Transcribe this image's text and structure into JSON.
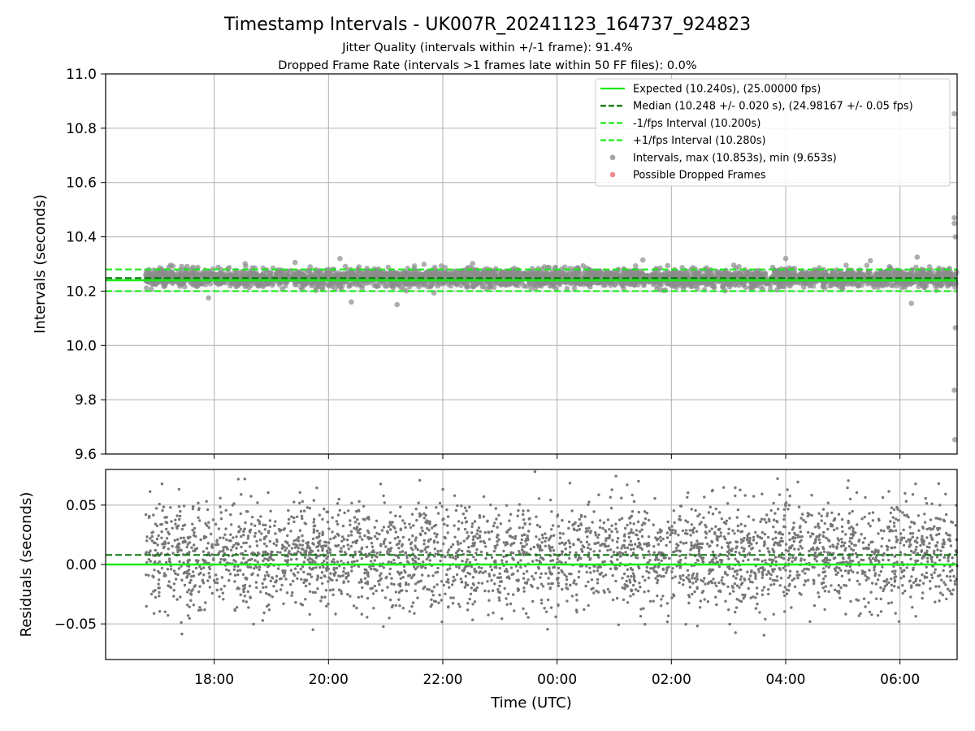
{
  "chart_data": {
    "type": "scatter",
    "title": "Timestamp Intervals - UK007R_20241123_164737_924823",
    "subtitle_lines": [
      "Jitter Quality (intervals within +/-1 frame): 91.4%",
      "Dropped Frame Rate (intervals >1 frames late within 50 FF files): 0.0%"
    ],
    "xlabel": "Time (UTC)",
    "x_ticks": [
      "18:00",
      "20:00",
      "22:00",
      "00:00",
      "02:00",
      "04:00",
      "06:00"
    ],
    "x_tick_hours": [
      18,
      20,
      22,
      24,
      26,
      28,
      30
    ],
    "xlim_hours": [
      16.1,
      31.0
    ],
    "data_start_hour": 16.8,
    "data_end_hour": 31.0,
    "grid": true,
    "legend_position": "top-right",
    "colors": {
      "expected": "#1aeb1a",
      "median": "#0a7a0a",
      "interval_bounds": "#1aeb1a",
      "intervals": "#8c8c8c",
      "dropped": "#f07070",
      "residuals": "#777777"
    },
    "main_panel": {
      "ylabel": "Intervals (seconds)",
      "ylim": [
        9.6,
        11.0
      ],
      "y_ticks": [
        9.6,
        9.8,
        10.0,
        10.2,
        10.4,
        10.6,
        10.8,
        11.0
      ],
      "y_tick_labels": [
        "9.6",
        "9.8",
        "10.0",
        "10.2",
        "10.4",
        "10.6",
        "10.8",
        "11.0"
      ],
      "expected_interval": 10.24,
      "median_interval": 10.248,
      "minus_interval": 10.2,
      "plus_interval": 10.28,
      "interval_max": 10.853,
      "interval_min": 9.653,
      "outliers": [
        {
          "hour": 30.95,
          "value": 10.853
        },
        {
          "hour": 30.95,
          "value": 10.47
        },
        {
          "hour": 30.95,
          "value": 10.45
        },
        {
          "hour": 30.97,
          "value": 10.4
        },
        {
          "hour": 30.97,
          "value": 10.065
        },
        {
          "hour": 30.95,
          "value": 9.835
        },
        {
          "hour": 30.96,
          "value": 9.653
        },
        {
          "hour": 17.9,
          "value": 10.175
        },
        {
          "hour": 20.4,
          "value": 10.16
        },
        {
          "hour": 21.2,
          "value": 10.15
        },
        {
          "hour": 30.2,
          "value": 10.155
        },
        {
          "hour": 28.0,
          "value": 10.32
        },
        {
          "hour": 30.3,
          "value": 10.325
        },
        {
          "hour": 20.2,
          "value": 10.32
        },
        {
          "hour": 25.5,
          "value": 10.315
        }
      ],
      "legend": [
        {
          "label": "Expected (10.240s), (25.00000 fps)",
          "style": "solid-line",
          "color_key": "expected"
        },
        {
          "label": "Median (10.248 +/- 0.020 s), (24.98167 +/- 0.05 fps)",
          "style": "dashed-line",
          "color_key": "median"
        },
        {
          "label": "-1/fps Interval (10.200s)",
          "style": "dashed-line",
          "color_key": "interval_bounds"
        },
        {
          "label": "+1/fps Interval (10.280s)",
          "style": "dashed-line",
          "color_key": "interval_bounds"
        },
        {
          "label": "Intervals, max (10.853s), min (9.653s)",
          "style": "marker",
          "color_key": "intervals"
        },
        {
          "label": "Possible Dropped Frames",
          "style": "marker",
          "color_key": "dropped"
        }
      ]
    },
    "residual_panel": {
      "ylabel": "Residuals (seconds)",
      "ylim": [
        -0.08,
        0.08
      ],
      "y_ticks": [
        -0.05,
        0.0,
        0.05
      ],
      "y_tick_labels": [
        "−0.05",
        "0.00",
        "0.05"
      ],
      "expected_residual": 0.0,
      "median_residual": 0.008,
      "residual_std": 0.022
    }
  }
}
